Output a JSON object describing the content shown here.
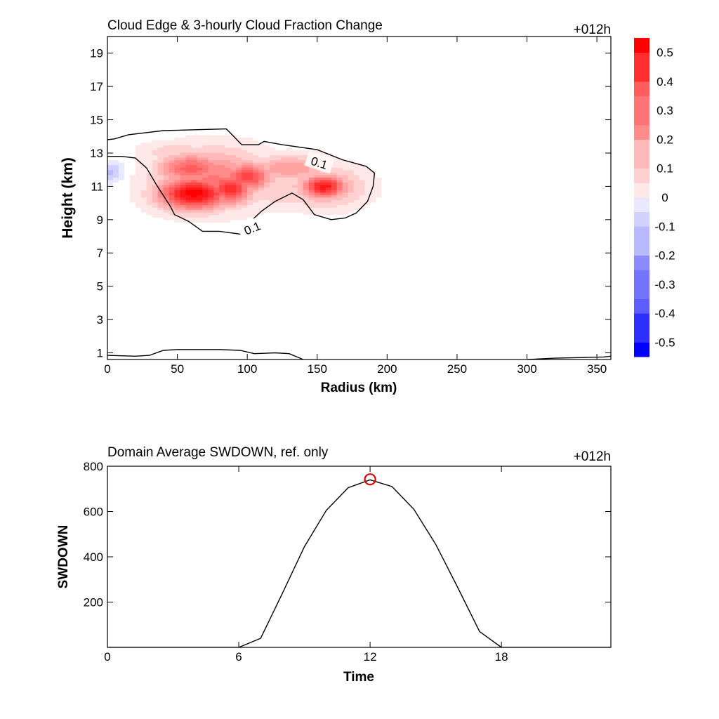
{
  "chart_data": [
    {
      "type": "heatmap",
      "title": "Cloud Edge & 3-hourly Cloud Fraction Change",
      "time_label": "+012h",
      "xlabel": "Radius (km)",
      "ylabel": "Height (km)",
      "xlim": [
        0,
        360
      ],
      "ylim": [
        0.6,
        20
      ],
      "xticks": [
        0,
        50,
        100,
        150,
        200,
        250,
        300,
        350
      ],
      "yticks": [
        1,
        3,
        5,
        7,
        9,
        11,
        13,
        15,
        17,
        19
      ],
      "contour_level": 0.1,
      "contour_labels": [
        "0.1",
        "0.1"
      ],
      "colorbar": {
        "levels": [
          -0.55,
          -0.5,
          -0.45,
          -0.4,
          -0.35,
          -0.3,
          -0.25,
          -0.2,
          -0.15,
          -0.1,
          -0.05,
          0,
          0.05,
          0.1,
          0.15,
          0.2,
          0.25,
          0.3,
          0.35,
          0.4,
          0.45,
          0.5,
          0.55
        ],
        "tick_labels": [
          "0.5",
          "0.4",
          "0.3",
          "0.2",
          "0.1",
          "0",
          "-0.1",
          "-0.2",
          "-0.3",
          "-0.4",
          "-0.5"
        ],
        "tick_values": [
          0.5,
          0.4,
          0.3,
          0.2,
          0.1,
          0,
          -0.1,
          -0.2,
          -0.3,
          -0.4,
          -0.5
        ],
        "positive_color": "#ff0000",
        "negative_color": "#0000ff",
        "zero_color": "#ffffff"
      },
      "background_value": 0.02,
      "cells": [
        {
          "r": 62,
          "z": 10.6,
          "rr": 26,
          "rz": 1.0,
          "v": 0.55
        },
        {
          "r": 88,
          "z": 10.9,
          "rr": 16,
          "rz": 1.0,
          "v": 0.45
        },
        {
          "r": 60,
          "z": 12.1,
          "rr": 24,
          "rz": 0.9,
          "v": 0.35
        },
        {
          "r": 100,
          "z": 11.6,
          "rr": 18,
          "rz": 0.9,
          "v": 0.4
        },
        {
          "r": 75,
          "z": 11.5,
          "rr": 40,
          "rz": 1.7,
          "v": 0.28
        },
        {
          "r": 130,
          "z": 12.1,
          "rr": 30,
          "rz": 0.8,
          "v": 0.22
        },
        {
          "r": 155,
          "z": 11.0,
          "rr": 16,
          "rz": 0.7,
          "v": 0.5
        },
        {
          "r": 155,
          "z": 11.0,
          "rr": 28,
          "rz": 1.2,
          "v": 0.22
        },
        {
          "r": 50,
          "z": 13.1,
          "rr": 25,
          "rz": 0.6,
          "v": 0.12
        },
        {
          "r": 125,
          "z": 10.6,
          "rr": 25,
          "rz": 0.9,
          "v": 0.12
        },
        {
          "r": 2,
          "z": 11.9,
          "rr": 10,
          "rz": 0.7,
          "v": -0.15
        }
      ],
      "contours": [
        [
          [
            0,
            13.8
          ],
          [
            5,
            13.85
          ],
          [
            15,
            14.1
          ],
          [
            40,
            14.35
          ],
          [
            85,
            14.45
          ],
          [
            88,
            14.2
          ],
          [
            96,
            13.5
          ],
          [
            108,
            13.5
          ],
          [
            112,
            13.7
          ],
          [
            125,
            13.5
          ],
          [
            150,
            13.2
          ],
          [
            168,
            12.6
          ],
          [
            185,
            12.2
          ],
          [
            191,
            11.8
          ],
          [
            190,
            11.0
          ],
          [
            186,
            10.1
          ],
          [
            178,
            9.4
          ],
          [
            170,
            9.1
          ],
          [
            160,
            9.0
          ],
          [
            148,
            9.3
          ],
          [
            140,
            10.2
          ],
          [
            132,
            10.6
          ],
          [
            120,
            10.1
          ],
          [
            110,
            9.5
          ],
          [
            100,
            8.7
          ],
          [
            98,
            8.1
          ],
          [
            80,
            8.3
          ],
          [
            68,
            8.3
          ],
          [
            58,
            8.9
          ],
          [
            48,
            9.3
          ],
          [
            45,
            9.8
          ],
          [
            35,
            11.1
          ],
          [
            28,
            12.1
          ],
          [
            20,
            12.7
          ],
          [
            10,
            12.8
          ],
          [
            0,
            12.8
          ]
        ],
        [
          [
            0,
            0.85
          ],
          [
            20,
            0.8
          ],
          [
            30,
            0.85
          ],
          [
            40,
            1.15
          ],
          [
            50,
            1.2
          ],
          [
            80,
            1.2
          ],
          [
            95,
            1.15
          ],
          [
            105,
            0.95
          ],
          [
            120,
            1.0
          ],
          [
            130,
            0.95
          ],
          [
            140,
            0.6
          ]
        ],
        [
          [
            300,
            0.6
          ],
          [
            320,
            0.68
          ],
          [
            340,
            0.72
          ],
          [
            355,
            0.75
          ],
          [
            360,
            0.8
          ]
        ]
      ]
    },
    {
      "type": "line",
      "title": "Domain Average SWDOWN, ref. only",
      "time_label": "+012h",
      "xlabel": "Time",
      "ylabel": "SWDOWN",
      "xlim": [
        0,
        23
      ],
      "ylim": [
        0,
        800
      ],
      "xticks": [
        0,
        6,
        12,
        18
      ],
      "yticks": [
        200,
        400,
        600,
        800
      ],
      "x": [
        0,
        1,
        2,
        3,
        4,
        5,
        6,
        7,
        8,
        9,
        10,
        11,
        12,
        13,
        14,
        15,
        16,
        17,
        18,
        19,
        20,
        21,
        22,
        23
      ],
      "values": [
        0,
        0,
        0,
        0,
        0,
        0,
        0,
        40,
        240,
        445,
        605,
        705,
        740,
        710,
        610,
        455,
        265,
        70,
        0,
        0,
        0,
        0,
        0,
        0
      ],
      "line_color": "#000000",
      "marker": {
        "x": 12,
        "y": 742,
        "color": "#e00000"
      }
    }
  ]
}
